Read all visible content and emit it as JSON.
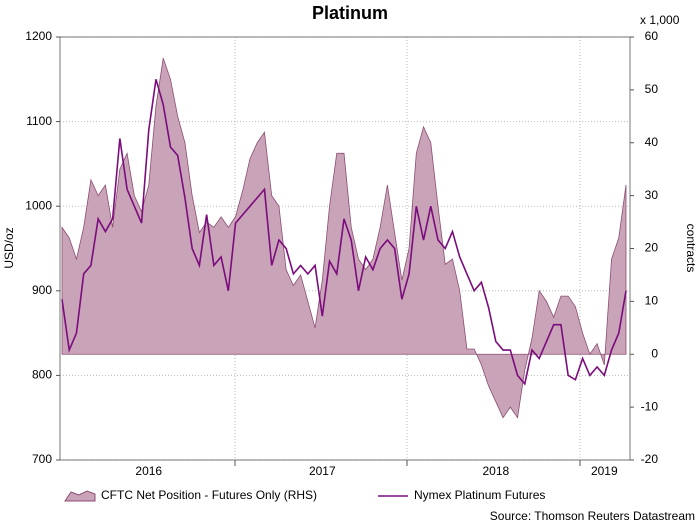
{
  "chart_data": {
    "type": "area_line",
    "title": "Platinum",
    "ylabel": "USD/oz",
    "y2label": "contracts",
    "y2unit": "x 1,000",
    "source": "Source: Thomson Reuters Datastream",
    "legend": "bottom",
    "grid": true,
    "categories": [
      null,
      null,
      null,
      null,
      null,
      null,
      null,
      null,
      null,
      null,
      null,
      null,
      "2016",
      null,
      null,
      null,
      null,
      null,
      null,
      null,
      null,
      null,
      null,
      null,
      null,
      null,
      null,
      null,
      null,
      null,
      null,
      null,
      null,
      null,
      null,
      null,
      "2017",
      null,
      null,
      null,
      null,
      null,
      null,
      null,
      null,
      null,
      null,
      null,
      null,
      null,
      null,
      null,
      null,
      null,
      null,
      null,
      null,
      null,
      null,
      null,
      "2018",
      null,
      null,
      null,
      null,
      null,
      null,
      null,
      null,
      null,
      null,
      null,
      null,
      null,
      null,
      "2019",
      null,
      null,
      null
    ],
    "ylim": [
      700,
      1200
    ],
    "yticks": [
      700,
      800,
      900,
      1000,
      1100,
      1200
    ],
    "y2lim": [
      -20,
      60
    ],
    "y2ticks": [
      -20,
      -10,
      0,
      10,
      20,
      30,
      40,
      50,
      60
    ],
    "series": [
      {
        "name": "CFTC Net Position - Futures Only (RHS)",
        "type": "area",
        "axis": "y2",
        "color": "#c9a3b8",
        "edge": "#8c4d72",
        "values": [
          24,
          22,
          18,
          24,
          33,
          30,
          32,
          24,
          35,
          38,
          30,
          27,
          32,
          47,
          56,
          52,
          45,
          40,
          30,
          23,
          25,
          24,
          26,
          24,
          26,
          31,
          37,
          40,
          42,
          30,
          28,
          16,
          13,
          15,
          10,
          5,
          14,
          28,
          38,
          38,
          24,
          18,
          16,
          18,
          24,
          32,
          23,
          14,
          20,
          38,
          43,
          40,
          28,
          17,
          18,
          12,
          1,
          1,
          -2,
          -6,
          -9,
          -12,
          -10,
          -12,
          -3,
          3,
          12,
          10,
          7,
          11,
          11,
          9,
          4,
          0,
          2,
          -2,
          18,
          22,
          32
        ]
      },
      {
        "name": "Nymex Platinum Futures",
        "type": "line",
        "axis": "y",
        "color": "#7b0c7d",
        "values": [
          890,
          830,
          850,
          920,
          930,
          985,
          970,
          985,
          1080,
          1020,
          1000,
          980,
          1090,
          1150,
          1120,
          1070,
          1060,
          1010,
          950,
          930,
          990,
          930,
          940,
          900,
          980,
          990,
          1000,
          1010,
          1020,
          930,
          960,
          950,
          920,
          930,
          920,
          930,
          870,
          935,
          920,
          985,
          960,
          900,
          940,
          925,
          950,
          960,
          950,
          890,
          920,
          1000,
          960,
          1000,
          960,
          950,
          970,
          940,
          920,
          900,
          910,
          880,
          840,
          830,
          830,
          800,
          790,
          830,
          820,
          840,
          860,
          860,
          800,
          795,
          820,
          800,
          810,
          800,
          830,
          850,
          900
        ]
      }
    ]
  }
}
